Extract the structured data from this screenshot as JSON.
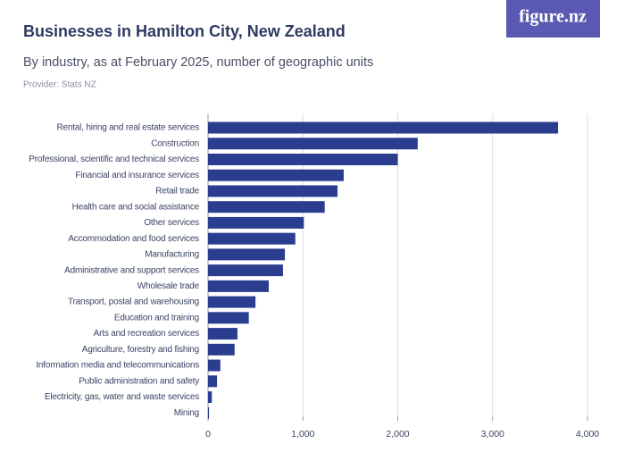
{
  "logo": "figure.nz",
  "chart_data": {
    "type": "bar",
    "orientation": "horizontal",
    "title": "Businesses in Hamilton City, New Zealand",
    "subtitle": "By industry, as at February 2025, number of geographic units",
    "provider": "Provider: Stats NZ",
    "categories": [
      "Rental, hiring and real estate services",
      "Construction",
      "Professional, scientific and technical services",
      "Financial and insurance services",
      "Retail trade",
      "Health care and social assistance",
      "Other services",
      "Accommodation and food services",
      "Manufacturing",
      "Administrative and support services",
      "Wholesale trade",
      "Transport, postal and warehousing",
      "Education and training",
      "Arts and recreation services",
      "Agriculture, forestry and fishing",
      "Information media and telecommunications",
      "Public administration and safety",
      "Electricity, gas, water and waste services",
      "Mining"
    ],
    "values": [
      3690,
      2210,
      2000,
      1430,
      1365,
      1230,
      1010,
      920,
      810,
      790,
      640,
      500,
      430,
      310,
      280,
      130,
      95,
      40,
      10
    ],
    "color": "#2b3d8f",
    "xlim": [
      0,
      4000
    ],
    "xticks": [
      0,
      {
        "value": 1000,
        "label": "1,000"
      },
      {
        "value": 2000,
        "label": "2,000"
      },
      {
        "value": 3000,
        "label": "3,000"
      },
      {
        "value": 4000,
        "label": "4,000"
      }
    ],
    "grid": true
  }
}
